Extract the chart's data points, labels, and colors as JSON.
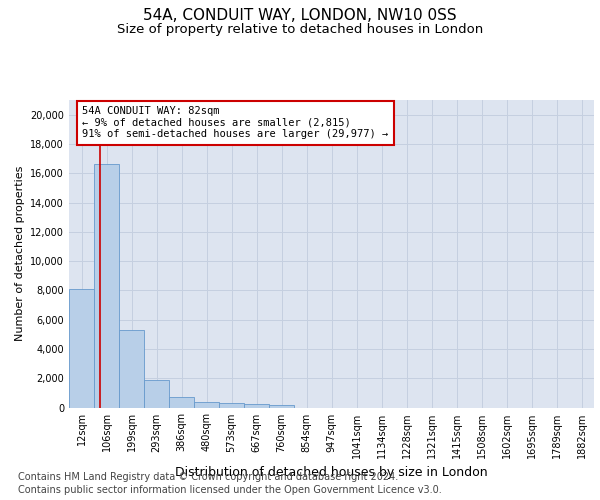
{
  "title": "54A, CONDUIT WAY, LONDON, NW10 0SS",
  "subtitle": "Size of property relative to detached houses in London",
  "xlabel": "Distribution of detached houses by size in London",
  "ylabel": "Number of detached properties",
  "categories": [
    "12sqm",
    "106sqm",
    "199sqm",
    "293sqm",
    "386sqm",
    "480sqm",
    "573sqm",
    "667sqm",
    "760sqm",
    "854sqm",
    "947sqm",
    "1041sqm",
    "1134sqm",
    "1228sqm",
    "1321sqm",
    "1415sqm",
    "1508sqm",
    "1602sqm",
    "1695sqm",
    "1789sqm",
    "1882sqm"
  ],
  "values": [
    8100,
    16600,
    5300,
    1850,
    700,
    370,
    280,
    220,
    190,
    0,
    0,
    0,
    0,
    0,
    0,
    0,
    0,
    0,
    0,
    0,
    0
  ],
  "bar_color": "#b8cfe8",
  "bar_edge_color": "#6699cc",
  "vline_color": "#cc0000",
  "vline_x": 0.72,
  "annotation_title": "54A CONDUIT WAY: 82sqm",
  "annotation_line1": "← 9% of detached houses are smaller (2,815)",
  "annotation_line2": "91% of semi-detached houses are larger (29,977) →",
  "annotation_box_facecolor": "#ffffff",
  "annotation_box_edgecolor": "#cc0000",
  "ylim": [
    0,
    21000
  ],
  "yticks": [
    0,
    2000,
    4000,
    6000,
    8000,
    10000,
    12000,
    14000,
    16000,
    18000,
    20000
  ],
  "grid_color": "#c5cfe0",
  "bg_color": "#dde4f0",
  "footer_line1": "Contains HM Land Registry data © Crown copyright and database right 2024.",
  "footer_line2": "Contains public sector information licensed under the Open Government Licence v3.0.",
  "title_fontsize": 11,
  "subtitle_fontsize": 9.5,
  "xlabel_fontsize": 9,
  "ylabel_fontsize": 8,
  "annot_fontsize": 7.5,
  "tick_fontsize": 7,
  "footer_fontsize": 7
}
